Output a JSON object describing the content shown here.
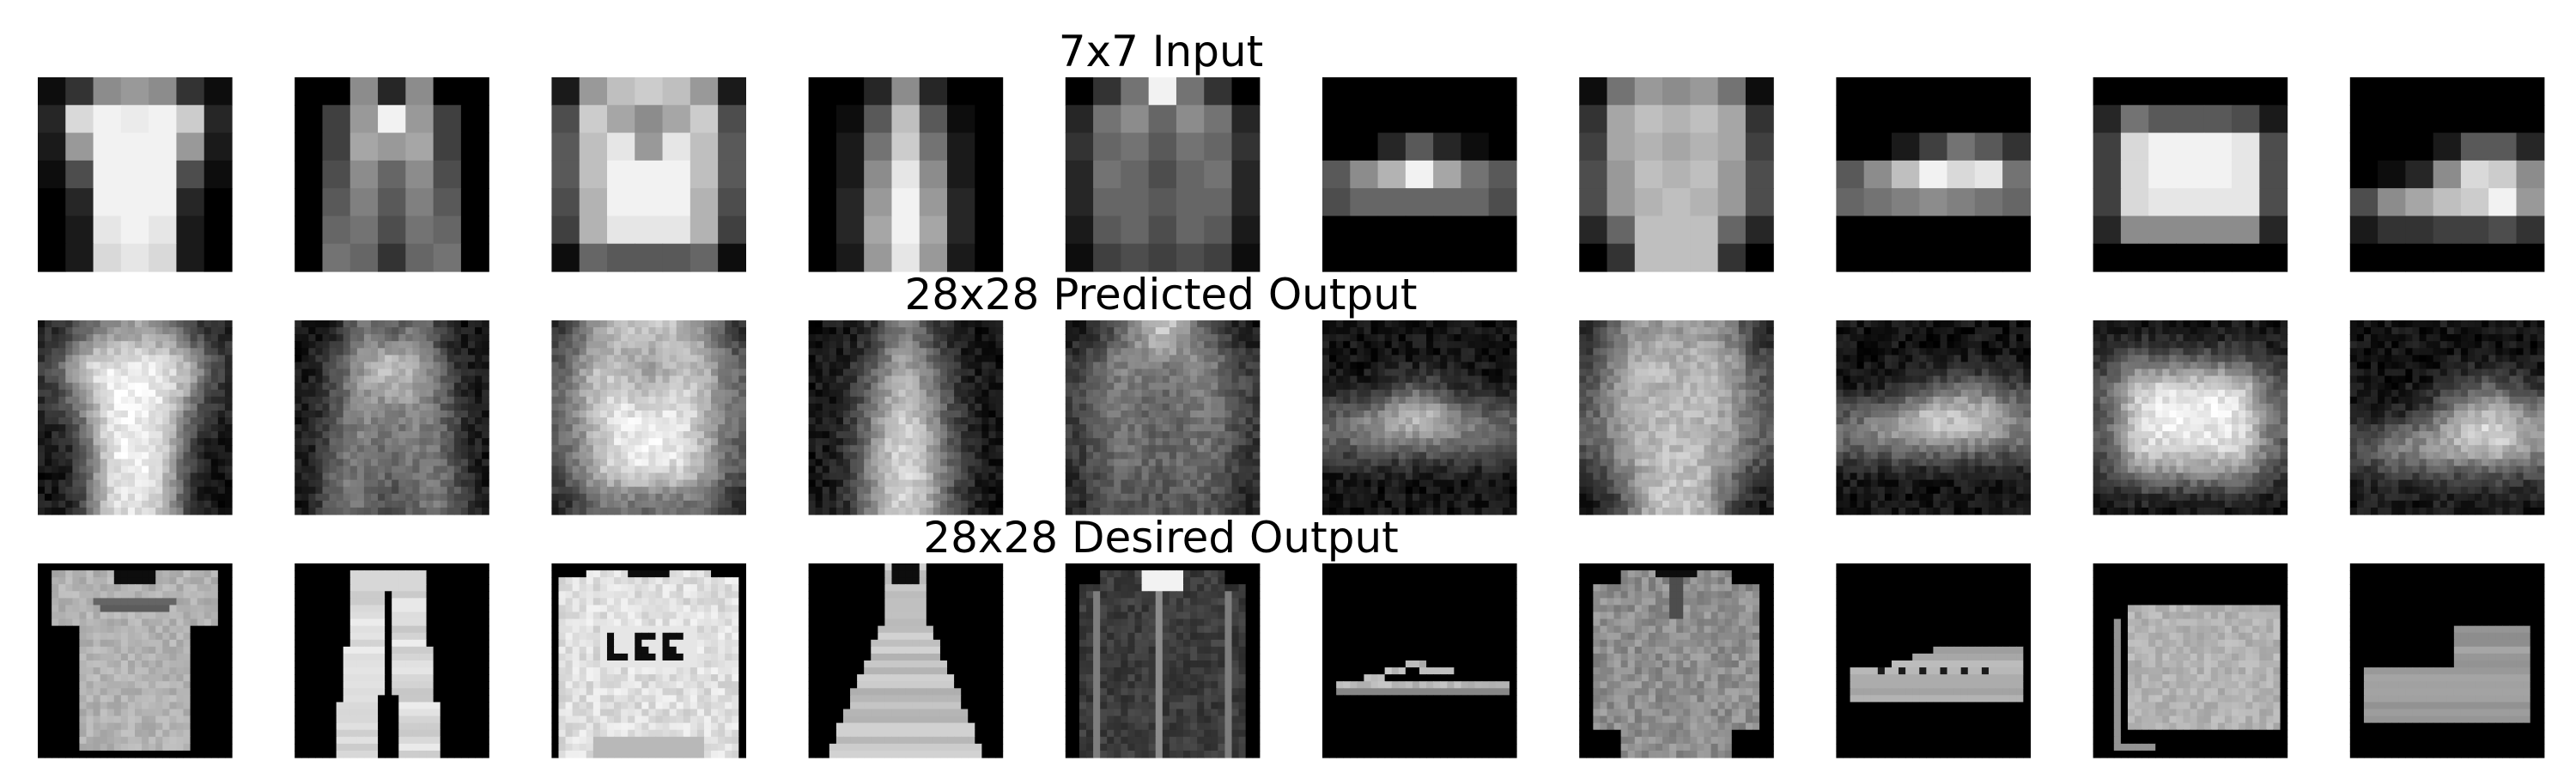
{
  "chart_data": {
    "type": "image_grid",
    "title": "",
    "rows": [
      {
        "title": "7x7 Input",
        "size": 7,
        "images": [
          [
            [
              0.05,
              0.2,
              0.55,
              0.6,
              0.55,
              0.2,
              0.05
            ],
            [
              0.15,
              0.85,
              0.95,
              0.92,
              0.95,
              0.8,
              0.15
            ],
            [
              0.1,
              0.6,
              0.95,
              0.95,
              0.95,
              0.6,
              0.1
            ],
            [
              0.05,
              0.3,
              0.95,
              0.95,
              0.95,
              0.3,
              0.05
            ],
            [
              0.0,
              0.15,
              0.95,
              0.95,
              0.95,
              0.15,
              0.0
            ],
            [
              0.0,
              0.1,
              0.9,
              0.95,
              0.9,
              0.1,
              0.0
            ],
            [
              0.0,
              0.1,
              0.85,
              0.9,
              0.85,
              0.1,
              0.0
            ]
          ],
          [
            [
              0.0,
              0.0,
              0.55,
              0.15,
              0.55,
              0.0,
              0.0
            ],
            [
              0.0,
              0.25,
              0.6,
              0.95,
              0.6,
              0.25,
              0.0
            ],
            [
              0.0,
              0.25,
              0.65,
              0.6,
              0.65,
              0.25,
              0.0
            ],
            [
              0.0,
              0.3,
              0.55,
              0.4,
              0.55,
              0.3,
              0.0
            ],
            [
              0.0,
              0.35,
              0.5,
              0.35,
              0.5,
              0.35,
              0.0
            ],
            [
              0.0,
              0.4,
              0.45,
              0.3,
              0.45,
              0.4,
              0.0
            ],
            [
              0.0,
              0.45,
              0.4,
              0.2,
              0.4,
              0.45,
              0.0
            ]
          ],
          [
            [
              0.1,
              0.6,
              0.75,
              0.8,
              0.75,
              0.6,
              0.1
            ],
            [
              0.3,
              0.8,
              0.65,
              0.55,
              0.65,
              0.8,
              0.3
            ],
            [
              0.35,
              0.75,
              0.9,
              0.6,
              0.9,
              0.75,
              0.35
            ],
            [
              0.35,
              0.75,
              0.95,
              0.95,
              0.95,
              0.75,
              0.35
            ],
            [
              0.3,
              0.7,
              0.95,
              0.95,
              0.95,
              0.7,
              0.3
            ],
            [
              0.25,
              0.7,
              0.9,
              0.9,
              0.9,
              0.7,
              0.25
            ],
            [
              0.05,
              0.4,
              0.35,
              0.35,
              0.35,
              0.4,
              0.05
            ]
          ],
          [
            [
              0.0,
              0.0,
              0.15,
              0.55,
              0.15,
              0.0,
              0.0
            ],
            [
              0.0,
              0.05,
              0.35,
              0.75,
              0.35,
              0.05,
              0.0
            ],
            [
              0.0,
              0.1,
              0.45,
              0.8,
              0.45,
              0.1,
              0.0
            ],
            [
              0.0,
              0.1,
              0.55,
              0.9,
              0.55,
              0.1,
              0.0
            ],
            [
              0.0,
              0.15,
              0.6,
              0.95,
              0.6,
              0.15,
              0.0
            ],
            [
              0.0,
              0.15,
              0.65,
              0.95,
              0.65,
              0.15,
              0.0
            ],
            [
              0.0,
              0.1,
              0.6,
              0.9,
              0.6,
              0.1,
              0.0
            ]
          ],
          [
            [
              0.0,
              0.2,
              0.45,
              0.95,
              0.45,
              0.2,
              0.0
            ],
            [
              0.15,
              0.45,
              0.55,
              0.4,
              0.55,
              0.45,
              0.15
            ],
            [
              0.2,
              0.4,
              0.45,
              0.35,
              0.45,
              0.4,
              0.2
            ],
            [
              0.15,
              0.45,
              0.4,
              0.3,
              0.4,
              0.45,
              0.15
            ],
            [
              0.15,
              0.4,
              0.4,
              0.35,
              0.4,
              0.4,
              0.15
            ],
            [
              0.1,
              0.35,
              0.4,
              0.3,
              0.4,
              0.35,
              0.1
            ],
            [
              0.05,
              0.25,
              0.3,
              0.25,
              0.3,
              0.25,
              0.05
            ]
          ],
          [
            [
              0.0,
              0.0,
              0.0,
              0.0,
              0.0,
              0.0,
              0.0
            ],
            [
              0.0,
              0.0,
              0.0,
              0.0,
              0.0,
              0.0,
              0.0
            ],
            [
              0.0,
              0.0,
              0.15,
              0.35,
              0.15,
              0.05,
              0.0
            ],
            [
              0.35,
              0.55,
              0.7,
              0.95,
              0.65,
              0.45,
              0.35
            ],
            [
              0.3,
              0.4,
              0.4,
              0.4,
              0.4,
              0.4,
              0.3
            ],
            [
              0.0,
              0.0,
              0.0,
              0.0,
              0.0,
              0.0,
              0.0
            ],
            [
              0.0,
              0.0,
              0.0,
              0.0,
              0.0,
              0.0,
              0.0
            ]
          ],
          [
            [
              0.05,
              0.45,
              0.6,
              0.55,
              0.6,
              0.45,
              0.05
            ],
            [
              0.2,
              0.65,
              0.75,
              0.7,
              0.75,
              0.65,
              0.2
            ],
            [
              0.25,
              0.65,
              0.7,
              0.65,
              0.7,
              0.65,
              0.25
            ],
            [
              0.3,
              0.6,
              0.75,
              0.7,
              0.75,
              0.6,
              0.3
            ],
            [
              0.3,
              0.6,
              0.7,
              0.75,
              0.7,
              0.6,
              0.3
            ],
            [
              0.15,
              0.4,
              0.75,
              0.75,
              0.75,
              0.4,
              0.15
            ],
            [
              0.0,
              0.2,
              0.75,
              0.75,
              0.75,
              0.2,
              0.0
            ]
          ],
          [
            [
              0.0,
              0.0,
              0.0,
              0.0,
              0.0,
              0.0,
              0.0
            ],
            [
              0.0,
              0.0,
              0.0,
              0.0,
              0.0,
              0.0,
              0.0
            ],
            [
              0.0,
              0.0,
              0.1,
              0.25,
              0.45,
              0.35,
              0.2
            ],
            [
              0.35,
              0.55,
              0.75,
              0.95,
              0.85,
              0.9,
              0.45
            ],
            [
              0.4,
              0.45,
              0.5,
              0.55,
              0.5,
              0.45,
              0.4
            ],
            [
              0.0,
              0.0,
              0.0,
              0.0,
              0.0,
              0.0,
              0.0
            ],
            [
              0.0,
              0.0,
              0.0,
              0.0,
              0.0,
              0.0,
              0.0
            ]
          ],
          [
            [
              0.0,
              0.0,
              0.0,
              0.0,
              0.0,
              0.0,
              0.0
            ],
            [
              0.15,
              0.45,
              0.35,
              0.35,
              0.35,
              0.3,
              0.1
            ],
            [
              0.25,
              0.85,
              0.95,
              0.95,
              0.95,
              0.9,
              0.3
            ],
            [
              0.25,
              0.85,
              0.95,
              0.95,
              0.95,
              0.9,
              0.3
            ],
            [
              0.25,
              0.85,
              0.9,
              0.9,
              0.9,
              0.9,
              0.3
            ],
            [
              0.15,
              0.55,
              0.55,
              0.55,
              0.55,
              0.55,
              0.15
            ],
            [
              0.0,
              0.0,
              0.0,
              0.0,
              0.0,
              0.0,
              0.0
            ]
          ],
          [
            [
              0.0,
              0.0,
              0.0,
              0.0,
              0.0,
              0.0,
              0.0
            ],
            [
              0.0,
              0.0,
              0.0,
              0.0,
              0.0,
              0.0,
              0.0
            ],
            [
              0.0,
              0.0,
              0.0,
              0.1,
              0.35,
              0.35,
              0.15
            ],
            [
              0.0,
              0.05,
              0.15,
              0.55,
              0.85,
              0.8,
              0.55
            ],
            [
              0.3,
              0.55,
              0.65,
              0.75,
              0.8,
              0.95,
              0.6
            ],
            [
              0.1,
              0.2,
              0.2,
              0.25,
              0.25,
              0.3,
              0.2
            ],
            [
              0.0,
              0.0,
              0.0,
              0.0,
              0.0,
              0.0,
              0.0
            ]
          ]
        ]
      },
      {
        "title": "28x28 Predicted Output",
        "size": 28,
        "source": "upsampled",
        "noise": 0.12,
        "blur": 1.6
      },
      {
        "title": "28x28 Desired Output",
        "size": 28,
        "images": [
          {
            "kind": "tshirt",
            "level": 0.72
          },
          {
            "kind": "trousers",
            "level": 0.88
          },
          {
            "kind": "sweater",
            "level": 0.9,
            "text": "Lee"
          },
          {
            "kind": "dress",
            "level": 0.78
          },
          {
            "kind": "coat",
            "level": 0.55
          },
          {
            "kind": "sandal",
            "level": 0.75
          },
          {
            "kind": "shirt",
            "level": 0.62
          },
          {
            "kind": "sneaker",
            "level": 0.7
          },
          {
            "kind": "bag",
            "level": 0.72
          },
          {
            "kind": "boot",
            "level": 0.62
          }
        ]
      }
    ]
  }
}
